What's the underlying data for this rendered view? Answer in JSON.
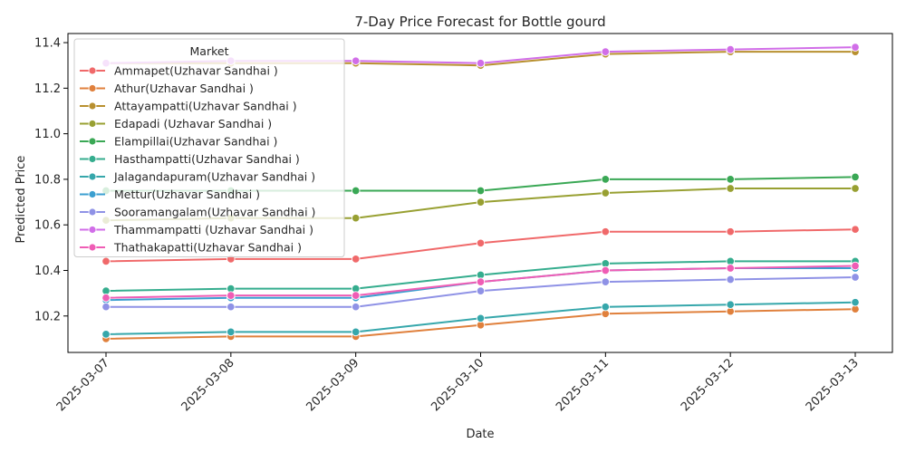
{
  "chart_data": {
    "type": "line",
    "title": "7-Day Price Forecast for Bottle gourd",
    "xlabel": "Date",
    "ylabel": "Predicted Price",
    "x": [
      "2025-03-07",
      "2025-03-08",
      "2025-03-09",
      "2025-03-10",
      "2025-03-11",
      "2025-03-12",
      "2025-03-13"
    ],
    "ylim": [
      10.04,
      11.44
    ],
    "yticks": [
      "10.2",
      "10.4",
      "10.6",
      "10.8",
      "11.0",
      "11.2",
      "11.4"
    ],
    "grid": false,
    "legend": {
      "title": "Market",
      "placement": "top-left"
    },
    "series": [
      {
        "name": "Ammapet(Uzhavar Sandhai )",
        "color": "#f0696a",
        "values": [
          10.44,
          10.45,
          10.45,
          10.52,
          10.57,
          10.57,
          10.58
        ]
      },
      {
        "name": "Athur(Uzhavar Sandhai )",
        "color": "#e0803c",
        "values": [
          10.1,
          10.11,
          10.11,
          10.16,
          10.21,
          10.22,
          10.23
        ]
      },
      {
        "name": "Attayampatti(Uzhavar Sandhai )",
        "color": "#b8902f",
        "values": [
          11.31,
          11.31,
          11.31,
          11.3,
          11.35,
          11.36,
          11.36
        ]
      },
      {
        "name": "Edapadi (Uzhavar Sandhai )",
        "color": "#98a032",
        "values": [
          10.62,
          10.63,
          10.63,
          10.7,
          10.74,
          10.76,
          10.76
        ]
      },
      {
        "name": "Elampillai(Uzhavar Sandhai )",
        "color": "#3aa855",
        "values": [
          10.75,
          10.75,
          10.75,
          10.75,
          10.8,
          10.8,
          10.81
        ]
      },
      {
        "name": "Hasthampatti(Uzhavar Sandhai )",
        "color": "#35ad8e",
        "values": [
          10.31,
          10.32,
          10.32,
          10.38,
          10.43,
          10.44,
          10.44
        ]
      },
      {
        "name": "Jalagandapuram(Uzhavar Sandhai )",
        "color": "#36a7ab",
        "values": [
          10.12,
          10.13,
          10.13,
          10.19,
          10.24,
          10.25,
          10.26
        ]
      },
      {
        "name": "Mettur(Uzhavar Sandhai )",
        "color": "#3b9fd0",
        "values": [
          10.27,
          10.28,
          10.28,
          10.35,
          10.4,
          10.41,
          10.41
        ]
      },
      {
        "name": "Sooramangalam(Uzhavar Sandhai )",
        "color": "#8f92e6",
        "values": [
          10.24,
          10.24,
          10.24,
          10.31,
          10.35,
          10.36,
          10.37
        ]
      },
      {
        "name": "Thammampatti (Uzhavar Sandhai )",
        "color": "#d16ee8",
        "values": [
          11.31,
          11.32,
          11.32,
          11.31,
          11.36,
          11.37,
          11.38
        ]
      },
      {
        "name": "Thathakapatti(Uzhavar Sandhai )",
        "color": "#ef5db5",
        "values": [
          10.28,
          10.29,
          10.29,
          10.35,
          10.4,
          10.41,
          10.42
        ]
      }
    ]
  }
}
